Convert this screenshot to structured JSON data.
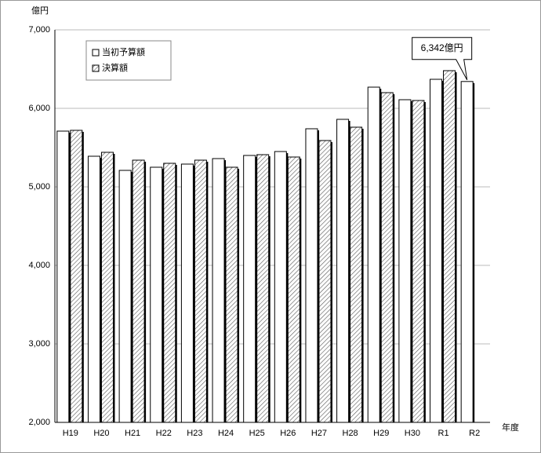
{
  "chart_data": {
    "type": "bar",
    "y_unit_label": "億円",
    "x_axis_label": "年度",
    "categories": [
      "H19",
      "H20",
      "H21",
      "H22",
      "H23",
      "H24",
      "H25",
      "H26",
      "H27",
      "H28",
      "H29",
      "H30",
      "R1",
      "R2"
    ],
    "series": [
      {
        "name": "当初予算額",
        "color": "#ffffff",
        "hatch": false,
        "values": [
          5710,
          5390,
          5210,
          5250,
          5290,
          5360,
          5400,
          5450,
          5740,
          5860,
          6270,
          6110,
          6370,
          6342
        ],
        "value_labels": [
          null,
          null,
          null,
          null,
          null,
          null,
          null,
          null,
          null,
          null,
          null,
          null,
          null,
          "6,342億円"
        ]
      },
      {
        "name": "決算額",
        "color": "#ffffff",
        "hatch": true,
        "values": [
          5720,
          5440,
          5340,
          5300,
          5340,
          5250,
          5410,
          5380,
          5590,
          5760,
          6200,
          6100,
          6480,
          null
        ]
      }
    ],
    "ylim": [
      2000,
      7000
    ],
    "yticks": [
      {
        "value": 2000,
        "label": "2,000"
      },
      {
        "value": 3000,
        "label": "3,000"
      },
      {
        "value": 4000,
        "label": "4,000"
      },
      {
        "value": 5000,
        "label": "5,000"
      },
      {
        "value": 6000,
        "label": "6,000"
      },
      {
        "value": 7000,
        "label": "7,000"
      }
    ],
    "grid": true
  }
}
